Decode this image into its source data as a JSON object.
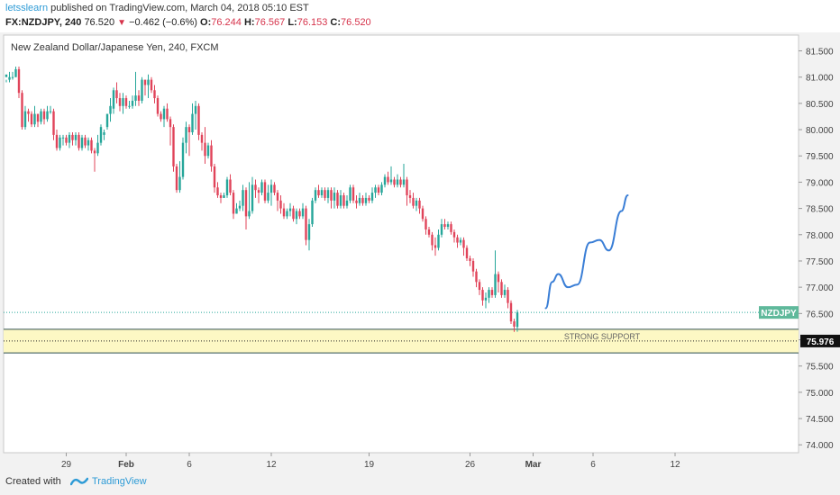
{
  "header": {
    "username": "letsslearn",
    "published_text": " published on TradingView.com, March 04, 2018 05:10 EST",
    "symbol": "FX:NZDJPY, 240",
    "last": "76.520",
    "change": "−0.462 (−0.6%)",
    "o_label": "O:",
    "o_value": "76.244",
    "h_label": "H:",
    "h_value": "76.567",
    "l_label": "L:",
    "l_value": "76.153",
    "c_label": "C:",
    "c_value": "76.520"
  },
  "footer": {
    "created_with": "Created with",
    "brand": "TradingView"
  },
  "colors": {
    "up": "#26a69a",
    "down": "#e0445a",
    "projection": "#3a7ed6",
    "zone_fill": "#fdf8c4",
    "zone_border": "#2f4f4f",
    "price_badge": "#5fb99b",
    "accent": "#2e9bd6"
  },
  "chart_data": {
    "type": "candlestick",
    "title": "New Zealand Dollar/Japanese Yen, 240, FXCM",
    "y_axis": {
      "ylim": [
        73.85,
        81.8
      ],
      "ticks": [
        "81.500",
        "81.000",
        "80.500",
        "80.000",
        "79.500",
        "79.000",
        "78.500",
        "78.000",
        "77.500",
        "77.000",
        "76.500",
        "76.000",
        "75.500",
        "75.000",
        "74.500",
        "74.000"
      ],
      "tick_values": [
        81.5,
        81.0,
        80.5,
        80.0,
        79.5,
        79.0,
        78.5,
        78.0,
        77.5,
        77.0,
        76.5,
        76.0,
        75.5,
        75.0,
        74.5,
        74.0
      ]
    },
    "x_axis": {
      "labels": [
        "29",
        "Feb",
        "6",
        "12",
        "19",
        "26",
        "Mar",
        "6",
        "12"
      ],
      "bold_labels": [
        "Feb",
        "Mar"
      ],
      "label_bars": [
        19,
        38,
        58,
        84,
        115,
        147,
        167,
        186,
        212
      ]
    },
    "candles": [
      [
        81.0,
        81.05,
        80.95,
        80.9
      ],
      [
        80.95,
        81.0,
        81.1,
        80.9
      ],
      [
        81.0,
        81.0,
        81.1,
        80.95
      ],
      [
        81.0,
        81.15,
        81.2,
        81.0
      ],
      [
        81.15,
        80.7,
        81.2,
        80.6
      ],
      [
        80.7,
        80.05,
        80.75,
        80.0
      ],
      [
        80.05,
        80.35,
        80.45,
        80.0
      ],
      [
        80.35,
        80.3,
        80.4,
        80.15
      ],
      [
        80.3,
        80.1,
        80.35,
        80.05
      ],
      [
        80.1,
        80.3,
        80.45,
        80.05
      ],
      [
        80.3,
        80.15,
        80.3,
        80.05
      ],
      [
        80.15,
        80.35,
        80.4,
        80.1
      ],
      [
        80.35,
        80.2,
        80.4,
        80.1
      ],
      [
        80.2,
        80.35,
        80.45,
        80.15
      ],
      [
        80.35,
        80.35,
        80.45,
        80.3
      ],
      [
        80.35,
        79.9,
        80.4,
        79.8
      ],
      [
        79.9,
        79.65,
        80.0,
        79.6
      ],
      [
        79.65,
        79.85,
        79.9,
        79.6
      ],
      [
        79.85,
        79.85,
        79.9,
        79.7
      ],
      [
        79.85,
        79.75,
        79.9,
        79.7
      ],
      [
        79.75,
        79.9,
        79.95,
        79.65
      ],
      [
        79.9,
        79.8,
        79.95,
        79.7
      ],
      [
        79.8,
        79.9,
        79.95,
        79.7
      ],
      [
        79.9,
        79.65,
        79.95,
        79.6
      ],
      [
        79.65,
        79.85,
        79.9,
        79.6
      ],
      [
        79.85,
        79.7,
        79.9,
        79.65
      ],
      [
        79.7,
        79.8,
        79.85,
        79.6
      ],
      [
        79.8,
        79.6,
        79.85,
        79.55
      ],
      [
        79.6,
        79.55,
        79.65,
        79.2
      ],
      [
        79.55,
        79.75,
        79.9,
        79.5
      ],
      [
        79.75,
        80.05,
        80.1,
        79.7
      ],
      [
        79.9,
        79.95,
        80.0,
        79.8
      ],
      [
        80.05,
        80.3,
        80.3,
        80.0
      ],
      [
        80.3,
        80.45,
        80.6,
        80.15
      ],
      [
        80.4,
        80.75,
        80.8,
        80.3
      ],
      [
        80.75,
        80.6,
        80.9,
        80.5
      ],
      [
        80.6,
        80.45,
        80.7,
        80.35
      ],
      [
        80.45,
        80.6,
        80.7,
        80.3
      ],
      [
        80.6,
        80.45,
        80.65,
        80.4
      ],
      [
        80.45,
        80.45,
        80.55,
        80.4
      ],
      [
        80.45,
        80.55,
        80.65,
        80.4
      ],
      [
        80.55,
        80.65,
        81.1,
        80.45
      ],
      [
        80.65,
        80.55,
        80.75,
        80.45
      ],
      [
        80.55,
        80.95,
        81.0,
        80.5
      ],
      [
        80.95,
        80.85,
        80.95,
        80.65
      ],
      [
        80.85,
        80.95,
        81.05,
        80.6
      ],
      [
        80.95,
        80.75,
        81.0,
        80.7
      ],
      [
        80.75,
        80.6,
        80.85,
        80.5
      ],
      [
        80.6,
        80.3,
        80.65,
        80.25
      ],
      [
        80.3,
        80.2,
        80.35,
        80.15
      ],
      [
        80.2,
        80.4,
        80.45,
        80.05
      ],
      [
        80.4,
        80.2,
        80.5,
        80.15
      ],
      [
        80.2,
        80.05,
        80.25,
        79.7
      ],
      [
        80.05,
        79.3,
        80.1,
        79.2
      ],
      [
        79.3,
        78.85,
        79.35,
        78.8
      ],
      [
        78.85,
        79.1,
        79.4,
        78.8
      ],
      [
        79.1,
        79.75,
        79.85,
        79.05
      ],
      [
        79.75,
        80.05,
        80.15,
        79.55
      ],
      [
        80.05,
        79.95,
        80.1,
        79.5
      ],
      [
        79.95,
        80.3,
        80.5,
        79.9
      ],
      [
        80.3,
        80.45,
        80.55,
        80.0
      ],
      [
        80.45,
        79.9,
        80.5,
        79.8
      ],
      [
        79.9,
        79.75,
        79.95,
        79.6
      ],
      [
        79.75,
        79.5,
        80.05,
        79.35
      ],
      [
        79.5,
        79.7,
        79.75,
        79.45
      ],
      [
        79.7,
        79.3,
        79.8,
        79.2
      ],
      [
        79.3,
        78.9,
        79.35,
        78.8
      ],
      [
        78.9,
        78.75,
        79.0,
        78.7
      ],
      [
        78.75,
        78.7,
        78.8,
        78.6
      ],
      [
        78.7,
        78.75,
        78.8,
        78.7
      ],
      [
        78.75,
        79.05,
        79.1,
        78.7
      ],
      [
        79.05,
        78.8,
        79.15,
        78.75
      ],
      [
        78.8,
        78.4,
        78.85,
        78.3
      ],
      [
        78.4,
        78.5,
        78.6,
        78.4
      ],
      [
        78.5,
        78.55,
        78.65,
        78.45
      ],
      [
        78.55,
        78.85,
        78.95,
        78.45
      ],
      [
        78.85,
        78.35,
        78.9,
        78.1
      ],
      [
        78.35,
        78.45,
        79.0,
        78.3
      ],
      [
        78.45,
        78.95,
        79.1,
        78.4
      ],
      [
        78.95,
        78.85,
        79.05,
        78.7
      ],
      [
        78.85,
        78.8,
        78.9,
        78.6
      ],
      [
        78.8,
        79.0,
        79.05,
        78.75
      ],
      [
        79.0,
        78.65,
        79.05,
        78.6
      ],
      [
        78.65,
        78.8,
        78.95,
        78.6
      ],
      [
        78.8,
        78.95,
        79.05,
        78.55
      ],
      [
        78.95,
        78.8,
        79.0,
        78.75
      ],
      [
        78.8,
        78.65,
        78.85,
        78.45
      ],
      [
        78.65,
        78.5,
        78.75,
        78.4
      ],
      [
        78.5,
        78.35,
        78.6,
        78.3
      ],
      [
        78.35,
        78.45,
        78.5,
        78.3
      ],
      [
        78.45,
        78.5,
        78.6,
        78.35
      ],
      [
        78.5,
        78.3,
        78.55,
        78.25
      ],
      [
        78.3,
        78.45,
        78.5,
        78.2
      ],
      [
        78.45,
        78.35,
        78.5,
        78.3
      ],
      [
        78.35,
        78.5,
        78.6,
        78.3
      ],
      [
        78.5,
        77.9,
        78.55,
        77.8
      ],
      [
        77.9,
        78.2,
        78.3,
        77.7
      ],
      [
        78.2,
        78.65,
        78.7,
        78.15
      ],
      [
        78.65,
        78.85,
        78.9,
        78.6
      ],
      [
        78.85,
        78.75,
        78.95,
        78.7
      ],
      [
        78.75,
        78.85,
        78.9,
        78.7
      ],
      [
        78.85,
        78.7,
        78.9,
        78.65
      ],
      [
        78.7,
        78.85,
        78.9,
        78.6
      ],
      [
        78.85,
        78.65,
        78.9,
        78.5
      ],
      [
        78.65,
        78.8,
        78.9,
        78.5
      ],
      [
        78.8,
        78.55,
        78.85,
        78.5
      ],
      [
        78.55,
        78.75,
        78.85,
        78.5
      ],
      [
        78.75,
        78.55,
        78.8,
        78.5
      ],
      [
        78.55,
        78.65,
        78.75,
        78.5
      ],
      [
        78.65,
        78.9,
        78.95,
        78.6
      ],
      [
        78.9,
        78.65,
        78.95,
        78.6
      ],
      [
        78.65,
        78.6,
        78.75,
        78.5
      ],
      [
        78.6,
        78.7,
        78.8,
        78.55
      ],
      [
        78.7,
        78.6,
        78.75,
        78.55
      ],
      [
        78.6,
        78.7,
        78.8,
        78.55
      ],
      [
        78.7,
        78.65,
        78.75,
        78.6
      ],
      [
        78.65,
        78.8,
        78.9,
        78.6
      ],
      [
        78.8,
        78.9,
        78.95,
        78.7
      ],
      [
        78.9,
        78.8,
        78.95,
        78.75
      ],
      [
        78.8,
        78.95,
        79.0,
        78.75
      ],
      [
        78.95,
        79.1,
        79.15,
        78.9
      ],
      [
        79.1,
        79.0,
        79.2,
        78.95
      ],
      [
        79.0,
        79.05,
        79.3,
        78.95
      ],
      [
        79.05,
        78.95,
        79.1,
        78.9
      ],
      [
        78.95,
        79.05,
        79.15,
        78.9
      ],
      [
        79.05,
        78.95,
        79.1,
        78.9
      ],
      [
        78.95,
        79.05,
        79.35,
        78.9
      ],
      [
        79.05,
        78.75,
        79.1,
        78.55
      ],
      [
        78.75,
        78.7,
        78.85,
        78.6
      ],
      [
        78.7,
        78.55,
        78.8,
        78.5
      ],
      [
        78.55,
        78.65,
        78.7,
        78.45
      ],
      [
        78.65,
        78.5,
        78.7,
        78.4
      ],
      [
        78.5,
        78.3,
        78.55,
        78.25
      ],
      [
        78.3,
        78.1,
        78.35,
        78.0
      ],
      [
        78.1,
        78.0,
        78.15,
        77.95
      ],
      [
        78.0,
        77.8,
        78.05,
        77.7
      ],
      [
        77.8,
        77.75,
        77.95,
        77.6
      ],
      [
        77.75,
        78.0,
        78.1,
        77.7
      ],
      [
        78.0,
        78.2,
        78.3,
        77.95
      ],
      [
        78.2,
        78.15,
        78.3,
        78.1
      ],
      [
        78.15,
        78.2,
        78.25,
        78.1
      ],
      [
        78.2,
        78.05,
        78.25,
        78.0
      ],
      [
        78.05,
        77.95,
        78.1,
        77.85
      ],
      [
        77.95,
        77.85,
        78.0,
        77.75
      ],
      [
        77.85,
        77.9,
        77.95,
        77.8
      ],
      [
        77.9,
        77.75,
        77.95,
        77.6
      ],
      [
        77.75,
        77.55,
        77.8,
        77.5
      ],
      [
        77.55,
        77.5,
        77.6,
        77.4
      ],
      [
        77.5,
        77.3,
        77.55,
        77.2
      ],
      [
        77.3,
        77.1,
        77.35,
        77.0
      ],
      [
        77.1,
        76.95,
        77.15,
        76.85
      ],
      [
        76.95,
        76.75,
        77.0,
        76.65
      ],
      [
        76.75,
        76.8,
        76.9,
        76.6
      ],
      [
        76.8,
        76.95,
        77.0,
        76.7
      ],
      [
        76.95,
        76.85,
        77.0,
        76.8
      ],
      [
        76.85,
        77.25,
        77.7,
        76.8
      ],
      [
        77.25,
        77.1,
        77.3,
        76.9
      ],
      [
        77.1,
        76.85,
        77.15,
        76.8
      ],
      [
        76.85,
        76.95,
        77.05,
        76.8
      ],
      [
        76.95,
        76.7,
        77.0,
        76.6
      ],
      [
        76.7,
        76.35,
        76.75,
        76.3
      ],
      [
        76.35,
        76.25,
        76.4,
        76.15
      ],
      [
        76.244,
        76.52,
        76.567,
        76.153
      ]
    ],
    "projection_path": [
      [
        76.6,
        171
      ],
      [
        77.1,
        173
      ],
      [
        77.25,
        175
      ],
      [
        77.0,
        178
      ],
      [
        77.05,
        181
      ],
      [
        77.85,
        185
      ],
      [
        77.9,
        188
      ],
      [
        77.7,
        191
      ],
      [
        78.45,
        195
      ],
      [
        78.75,
        197
      ]
    ],
    "support_zone": {
      "label": "STRONG SUPPORT",
      "top": 76.2,
      "bottom": 75.75,
      "dotted_level": 75.976
    },
    "price_line": {
      "value": 76.52,
      "label": "NZDJPY"
    },
    "price_label": "75.976"
  }
}
